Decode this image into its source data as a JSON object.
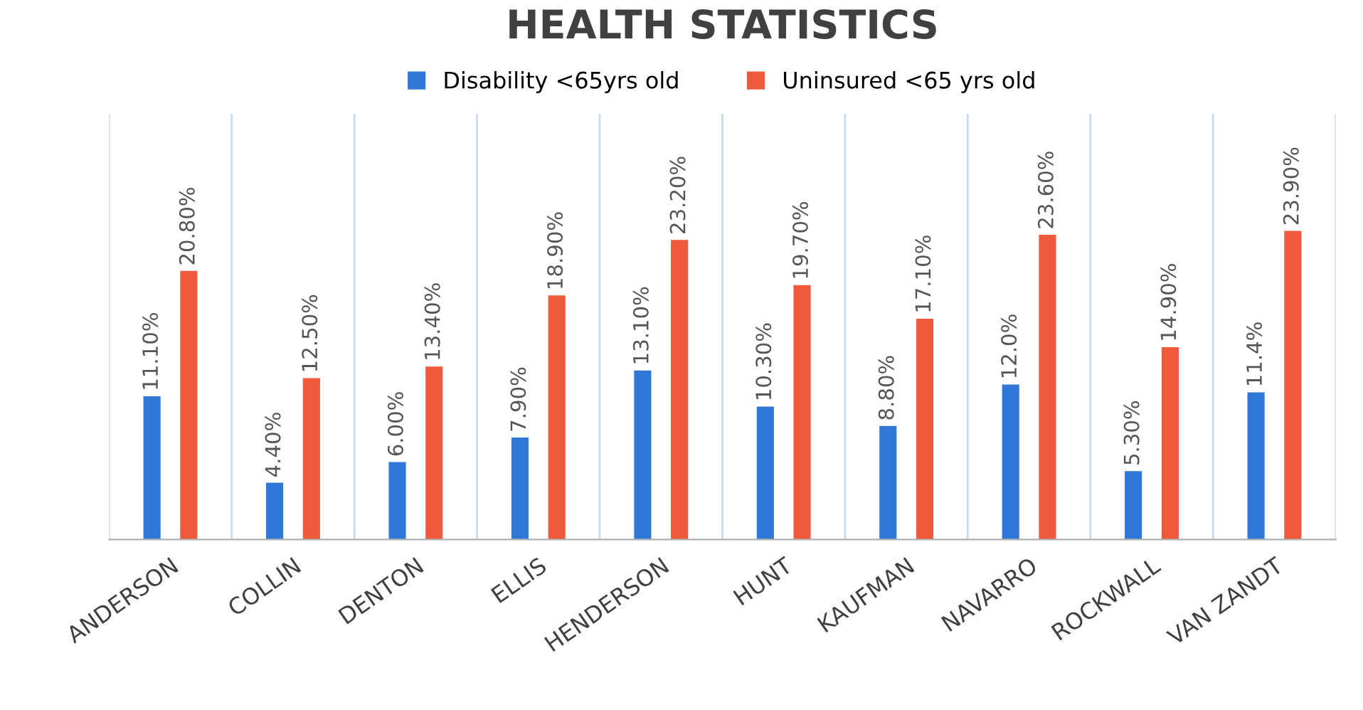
{
  "chart_data": {
    "type": "bar",
    "title": "HEALTH STATISTICS",
    "categories": [
      "ANDERSON",
      "COLLIN",
      "DENTON",
      "ELLIS",
      "HENDERSON",
      "HUNT",
      "KAUFMAN",
      "NAVARRO",
      "ROCKWALL",
      "VAN ZANDT"
    ],
    "series": [
      {
        "name": "Disability <65yrs old",
        "color": "#2f78d8",
        "values": [
          11.1,
          4.4,
          6.0,
          7.9,
          13.1,
          10.3,
          8.8,
          12.0,
          5.3,
          11.4
        ],
        "value_labels": [
          "11.10%",
          "4.40%",
          "6.00%",
          "7.90%",
          "13.10%",
          "10.30%",
          "8.80%",
          "12.0%",
          "5.30%",
          "11.4%"
        ]
      },
      {
        "name": "Uninsured <65 yrs old",
        "color": "#f05a3c",
        "values": [
          20.8,
          12.5,
          13.4,
          18.9,
          23.2,
          19.7,
          17.1,
          23.6,
          14.9,
          23.9
        ],
        "value_labels": [
          "20.80%",
          "12.50%",
          "13.40%",
          "18.90%",
          "23.20%",
          "19.70%",
          "17.10%",
          "23.60%",
          "14.90%",
          "23.90%"
        ]
      }
    ],
    "legend": "top"
  }
}
